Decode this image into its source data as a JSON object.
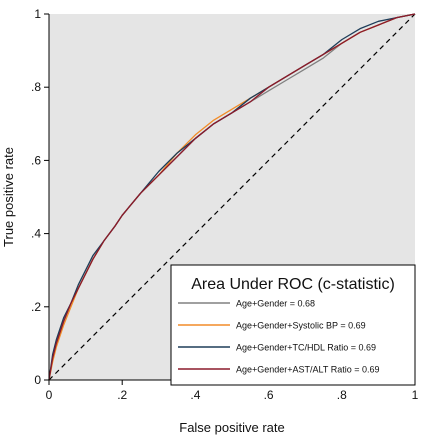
{
  "chart_data": {
    "type": "line",
    "xlabel": "False positive rate",
    "ylabel": "True positive rate",
    "xlim": [
      0,
      1
    ],
    "ylim": [
      0,
      1
    ],
    "x_ticks": [
      {
        "value": 0,
        "label": "0"
      },
      {
        "value": 0.2,
        "label": ".2"
      },
      {
        "value": 0.4,
        "label": ".4"
      },
      {
        "value": 0.6,
        "label": ".6"
      },
      {
        "value": 0.8,
        "label": ".8"
      },
      {
        "value": 1,
        "label": "1"
      }
    ],
    "y_ticks": [
      {
        "value": 0,
        "label": "0"
      },
      {
        "value": 0.2,
        "label": ".2"
      },
      {
        "value": 0.4,
        "label": ".4"
      },
      {
        "value": 0.6,
        "label": ".6"
      },
      {
        "value": 0.8,
        "label": ".8"
      },
      {
        "value": 1,
        "label": "1"
      }
    ],
    "grid": false,
    "background": "#e5e5e5",
    "legend": {
      "title": "Area Under ROC (c-statistic)",
      "placement": "bottom-right"
    },
    "reference_line": {
      "x": [
        0,
        1
      ],
      "y": [
        0,
        1
      ],
      "style": "dashed",
      "color": "#000000"
    },
    "series": [
      {
        "name": "Age+Gender = 0.68",
        "color": "#808080",
        "x": [
          0,
          0.01,
          0.02,
          0.04,
          0.06,
          0.08,
          0.1,
          0.12,
          0.15,
          0.18,
          0.2,
          0.25,
          0.3,
          0.35,
          0.4,
          0.45,
          0.5,
          0.55,
          0.6,
          0.65,
          0.7,
          0.75,
          0.8,
          0.85,
          0.9,
          0.95,
          1
        ],
        "y": [
          0,
          0.06,
          0.1,
          0.16,
          0.21,
          0.25,
          0.29,
          0.33,
          0.38,
          0.42,
          0.45,
          0.51,
          0.56,
          0.61,
          0.66,
          0.7,
          0.73,
          0.76,
          0.79,
          0.82,
          0.85,
          0.88,
          0.92,
          0.95,
          0.97,
          0.99,
          1
        ]
      },
      {
        "name": "Age+Gender+Systolic BP = 0.69",
        "color": "#f28c28",
        "x": [
          0,
          0.01,
          0.02,
          0.04,
          0.06,
          0.08,
          0.1,
          0.12,
          0.15,
          0.18,
          0.2,
          0.25,
          0.3,
          0.35,
          0.4,
          0.45,
          0.5,
          0.55,
          0.6,
          0.65,
          0.7,
          0.75,
          0.8,
          0.85,
          0.9,
          0.95,
          1
        ],
        "y": [
          0,
          0.05,
          0.09,
          0.15,
          0.2,
          0.25,
          0.29,
          0.33,
          0.38,
          0.42,
          0.45,
          0.51,
          0.56,
          0.62,
          0.67,
          0.71,
          0.74,
          0.77,
          0.8,
          0.83,
          0.86,
          0.89,
          0.92,
          0.95,
          0.97,
          0.99,
          1
        ]
      },
      {
        "name": "Age+Gender+TC/HDL Ratio = 0.69",
        "color": "#1e3d59",
        "x": [
          0,
          0.01,
          0.02,
          0.04,
          0.06,
          0.08,
          0.1,
          0.12,
          0.15,
          0.18,
          0.2,
          0.25,
          0.3,
          0.35,
          0.4,
          0.45,
          0.5,
          0.55,
          0.6,
          0.65,
          0.7,
          0.75,
          0.8,
          0.85,
          0.9,
          0.95,
          1
        ],
        "y": [
          0,
          0.07,
          0.11,
          0.17,
          0.21,
          0.26,
          0.3,
          0.34,
          0.38,
          0.42,
          0.45,
          0.51,
          0.57,
          0.62,
          0.66,
          0.7,
          0.73,
          0.77,
          0.8,
          0.83,
          0.86,
          0.89,
          0.93,
          0.96,
          0.98,
          0.99,
          1
        ]
      },
      {
        "name": "Age+Gender+AST/ALT Ratio = 0.69",
        "color": "#8b1a2b",
        "x": [
          0,
          0.01,
          0.02,
          0.04,
          0.06,
          0.08,
          0.1,
          0.12,
          0.15,
          0.18,
          0.2,
          0.25,
          0.3,
          0.35,
          0.4,
          0.45,
          0.5,
          0.55,
          0.6,
          0.65,
          0.7,
          0.75,
          0.8,
          0.85,
          0.9,
          0.95,
          1
        ],
        "y": [
          0,
          0.06,
          0.1,
          0.16,
          0.21,
          0.25,
          0.29,
          0.33,
          0.38,
          0.42,
          0.45,
          0.51,
          0.56,
          0.61,
          0.66,
          0.7,
          0.73,
          0.76,
          0.8,
          0.83,
          0.86,
          0.89,
          0.92,
          0.95,
          0.97,
          0.99,
          1
        ]
      }
    ]
  }
}
